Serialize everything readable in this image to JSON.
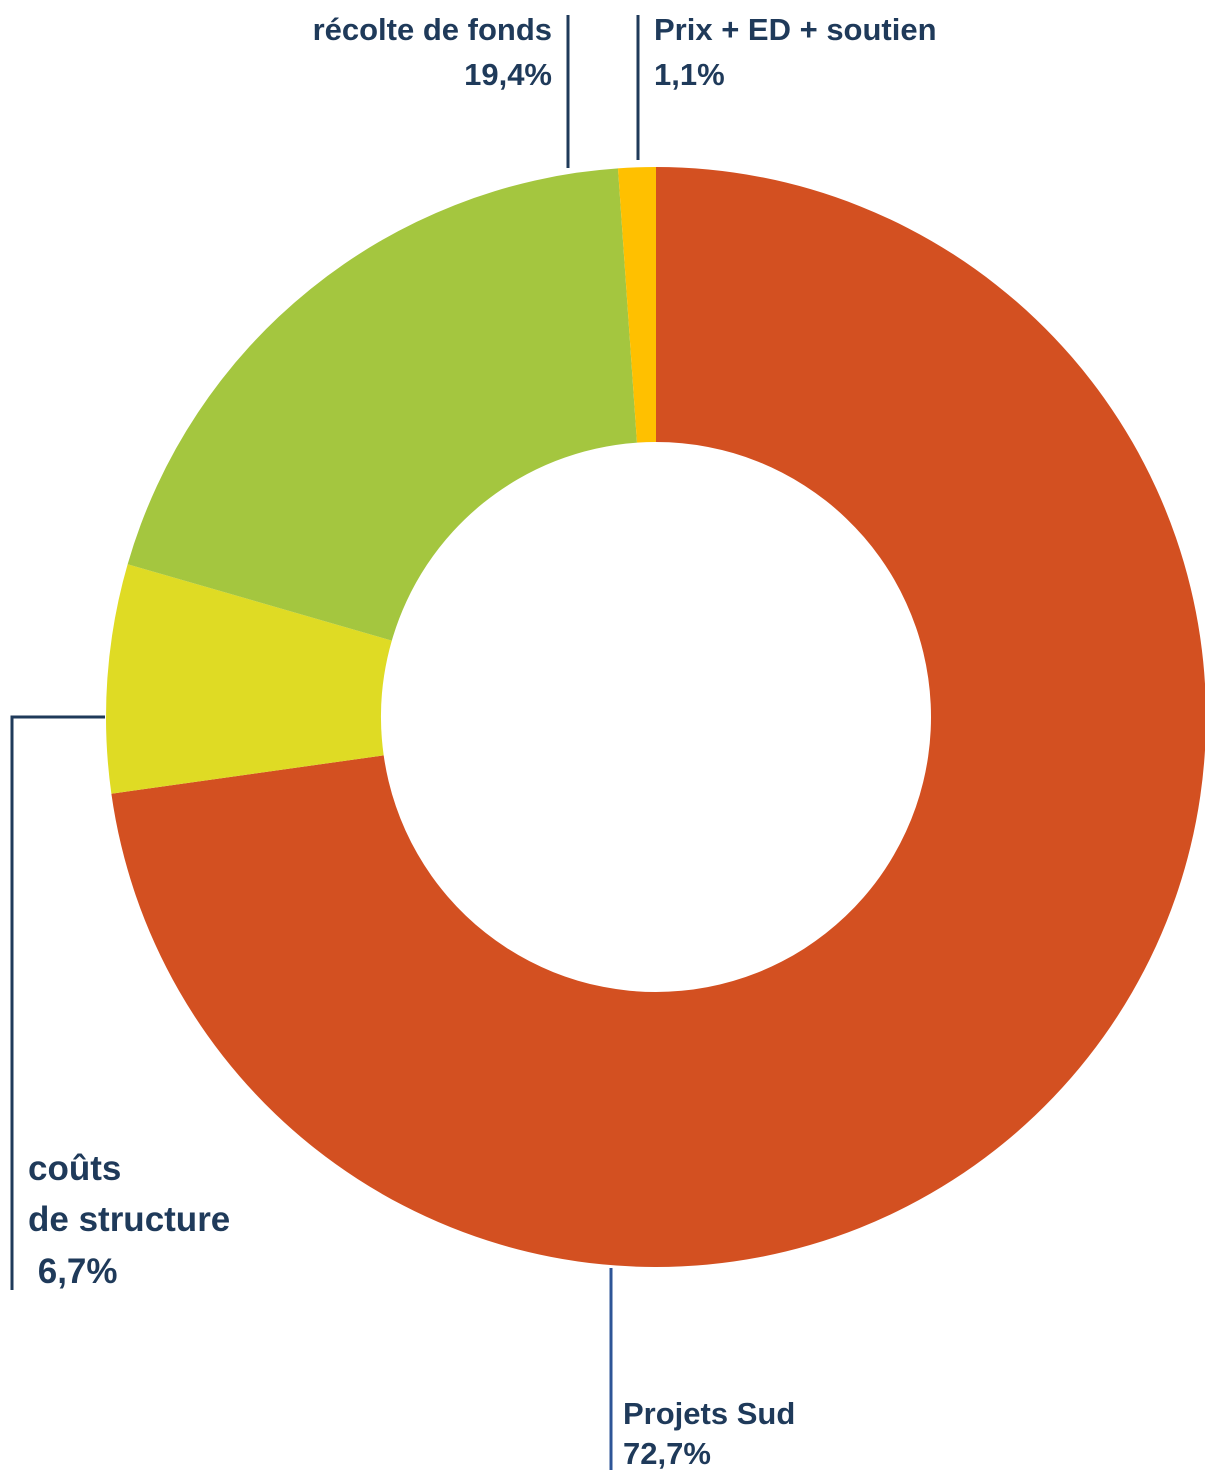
{
  "chart_data": {
    "type": "pie",
    "style": "donut",
    "slices": [
      {
        "name": "Projets Sud",
        "value": 72.7,
        "value_label": "72,7%",
        "color": "#d35021"
      },
      {
        "name_lines": [
          "coûts",
          "de structure"
        ],
        "value": 6.7,
        "value_label": " 6,7%",
        "color": "#dfdb24"
      },
      {
        "name": "récolte de fonds",
        "value": 19.4,
        "value_label": "19,4%",
        "color": "#a4c63f"
      },
      {
        "name": "Prix + ED + soutien",
        "value": 1.1,
        "value_label": "1,1%",
        "color": "#ffc000"
      }
    ],
    "leader_line_color": "#1f3a5a"
  }
}
